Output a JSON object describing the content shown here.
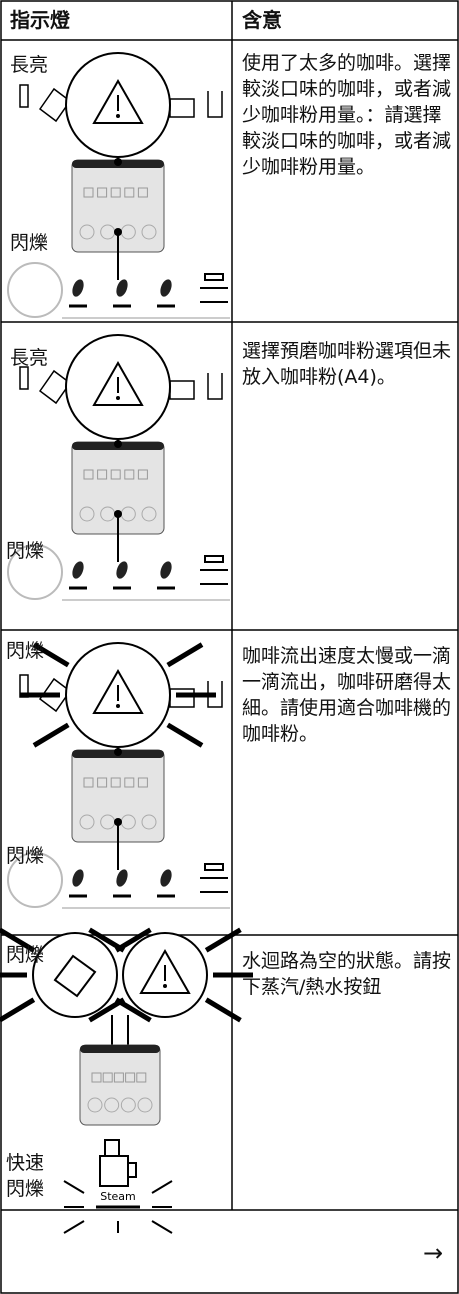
{
  "table": {
    "header": [
      "指示燈",
      "含意"
    ],
    "rows": [
      {
        "labels": [
          "長亮",
          "閃爍"
        ],
        "meaning": "使用了太多的咖啡。選擇較淡口味的咖啡，或者減少咖啡粉用量。：請選擇較淡口味的咖啡，或者減少咖啡粉用量。"
      },
      {
        "labels": [
          "長亮",
          "閃爍"
        ],
        "meaning": "選擇預磨咖啡粉選項但未放入咖啡粉(A4)。"
      },
      {
        "labels": [
          "閃爍",
          "閃爍"
        ],
        "meaning": "咖啡流出速度太慢或一滴一滴流出，咖啡研磨得太細。請使用適合咖啡機的咖啡粉。"
      },
      {
        "labels": [
          "閃爍",
          "快速閃爍"
        ],
        "steam": "Steam",
        "meaning": "水迴路為空的狀態。請按下蒸汽/熱水按鈕"
      }
    ]
  },
  "footer": {
    "arrow": "→"
  }
}
